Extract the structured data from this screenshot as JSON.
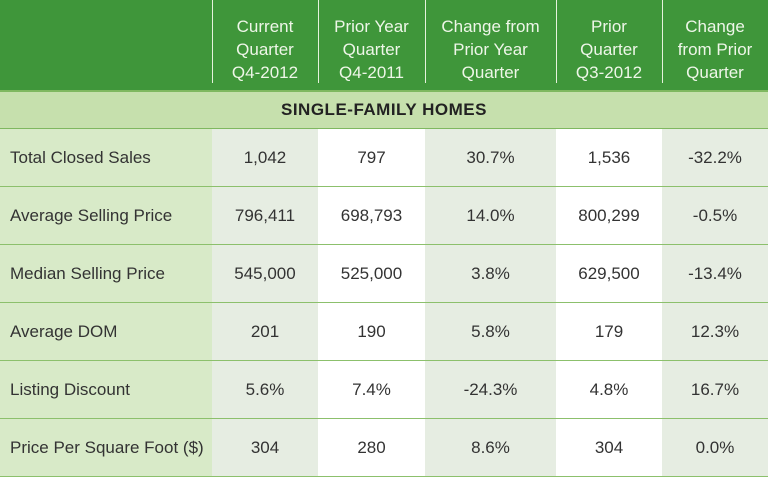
{
  "columns": [
    [
      "Current",
      "Quarter",
      "Q4-2012"
    ],
    [
      "Prior Year",
      "Quarter",
      "Q4-2011"
    ],
    [
      "Change from",
      "Prior Year",
      "Quarter"
    ],
    [
      "Prior",
      "Quarter",
      "Q3-2012"
    ],
    [
      "Change",
      "from Prior",
      "Quarter"
    ]
  ],
  "section": "SINGLE-FAMILY HOMES",
  "rows": [
    {
      "label": "Total Closed Sales",
      "values": [
        "1,042",
        "797",
        "30.7%",
        "1,536",
        "-32.2%"
      ]
    },
    {
      "label": "Average Selling Price",
      "values": [
        "796,411",
        "698,793",
        "14.0%",
        "800,299",
        "-0.5%"
      ]
    },
    {
      "label": "Median Selling Price",
      "values": [
        "545,000",
        "525,000",
        "3.8%",
        "629,500",
        "-13.4%"
      ]
    },
    {
      "label": "Average DOM",
      "values": [
        "201",
        "190",
        "5.8%",
        "179",
        "12.3%"
      ]
    },
    {
      "label": "Listing Discount",
      "values": [
        "5.6%",
        "7.4%",
        "-24.3%",
        "4.8%",
        "16.7%"
      ]
    },
    {
      "label": "Price Per Square Foot ($)",
      "values": [
        "304",
        "280",
        "8.6%",
        "304",
        "0.0%"
      ]
    }
  ],
  "colors": {
    "header": "#3f963a",
    "section": "#c6e0ad",
    "label_col": "#d8eac8",
    "shaded_col": "#e6ede2"
  }
}
